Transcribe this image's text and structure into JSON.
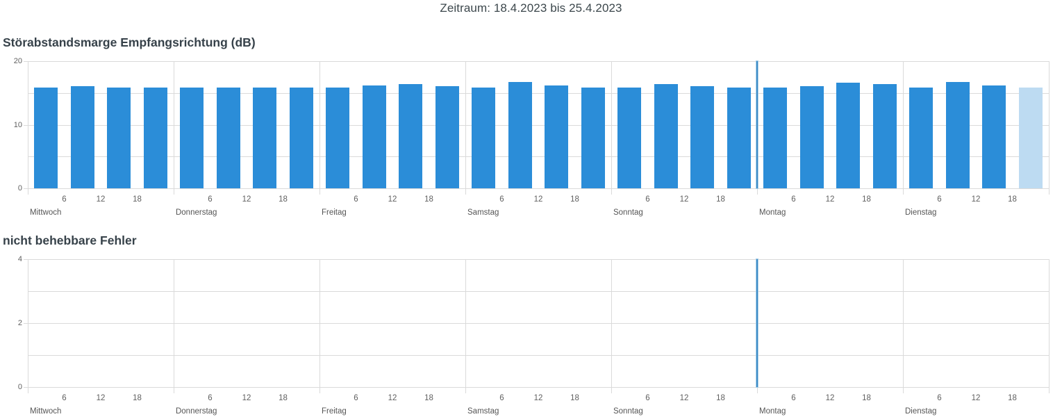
{
  "page": {
    "title": "Zeitraum: 18.4.2023 bis 25.4.2023"
  },
  "colors": {
    "bar": "#2b8dd8",
    "bar_partial": "#bddbf2",
    "grid": "#dadada",
    "marker_line": "#3e8cc7",
    "marker_halo": "#a8cfe8",
    "title_text": "#37424a",
    "axis_text": "#606060"
  },
  "chart_data": [
    {
      "type": "bar",
      "title": "Störabstandsmarge Empfangsrichtung (dB)",
      "categories": [
        "Mittwoch",
        "Donnerstag",
        "Freitag",
        "Samstag",
        "Sonntag",
        "Montag",
        "Dienstag"
      ],
      "hour_ticks": [
        6,
        12,
        18
      ],
      "hours_per_day": 24,
      "bars_per_day": 4,
      "bar_slot_hours": 6,
      "values": [
        15.9,
        16.1,
        15.9,
        15.9,
        15.9,
        15.9,
        15.9,
        15.9,
        15.9,
        16.2,
        16.4,
        16.1,
        15.9,
        16.7,
        16.2,
        15.9,
        15.9,
        16.4,
        16.1,
        15.9,
        15.9,
        16.1,
        16.6,
        16.4,
        15.9,
        16.7,
        16.2,
        15.9
      ],
      "partial_bar_index": 27,
      "ylim": [
        0,
        20
      ],
      "y_tick_values": [
        0,
        10,
        20
      ],
      "grid_step": 5,
      "marker_day_index": 5,
      "bar_color": "#2b8dd8",
      "partial_bar_color": "#bddbf2",
      "legend": "none",
      "grid": "on"
    },
    {
      "type": "bar",
      "title": "nicht behebbare Fehler",
      "categories": [
        "Mittwoch",
        "Donnerstag",
        "Freitag",
        "Samstag",
        "Sonntag",
        "Montag",
        "Dienstag"
      ],
      "hour_ticks": [
        6,
        12,
        18
      ],
      "hours_per_day": 24,
      "bars_per_day": 4,
      "bar_slot_hours": 6,
      "values": [
        0,
        0,
        0,
        0,
        0,
        0,
        0,
        0,
        0,
        0,
        0,
        0,
        0,
        0,
        0,
        0,
        0,
        0,
        0,
        0,
        0,
        0,
        0,
        0,
        0,
        0,
        0,
        0
      ],
      "partial_bar_index": 27,
      "ylim": [
        0,
        4
      ],
      "y_tick_values": [
        0,
        2,
        4
      ],
      "grid_step": 1,
      "marker_day_index": 5,
      "bar_color": "#2b8dd8",
      "partial_bar_color": "#bddbf2",
      "legend": "none",
      "grid": "on"
    }
  ]
}
